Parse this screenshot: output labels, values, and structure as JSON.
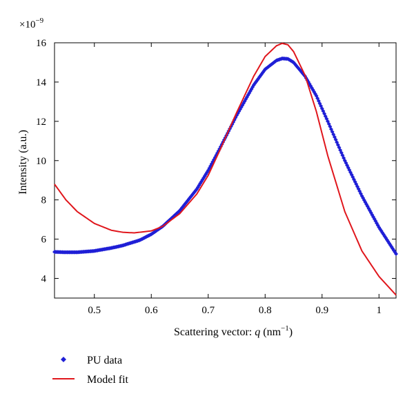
{
  "chart_data": {
    "type": "line",
    "xlabel_prefix": "Scattering vector: ",
    "xlabel_var": "q",
    "xlabel_unit_open": " (nm",
    "xlabel_unit_exp": "−1",
    "xlabel_unit_close": ")",
    "ylabel": "Intensity (a.u.)",
    "y_multiplier_base": "×10",
    "y_multiplier_exp": "−9",
    "xlim": [
      0.43,
      1.03
    ],
    "ylim": [
      3.0,
      16.0
    ],
    "xticks": [
      0.5,
      0.6,
      0.7,
      0.8,
      0.9,
      1
    ],
    "yticks": [
      4,
      6,
      8,
      10,
      12,
      14,
      16
    ],
    "legend_position": "bottom-left",
    "series": [
      {
        "name": "PU data",
        "style": "markers",
        "color": "#1f1fd6",
        "x": [
          0.43,
          0.45,
          0.47,
          0.5,
          0.53,
          0.55,
          0.58,
          0.6,
          0.62,
          0.65,
          0.68,
          0.7,
          0.72,
          0.75,
          0.78,
          0.8,
          0.82,
          0.83,
          0.84,
          0.85,
          0.87,
          0.89,
          0.91,
          0.94,
          0.97,
          1.0,
          1.03
        ],
        "y": [
          5.35,
          5.33,
          5.33,
          5.4,
          5.55,
          5.68,
          5.95,
          6.25,
          6.65,
          7.45,
          8.55,
          9.5,
          10.6,
          12.3,
          13.85,
          14.65,
          15.1,
          15.2,
          15.18,
          15.0,
          14.3,
          13.3,
          12.0,
          10.0,
          8.2,
          6.6,
          5.25
        ]
      },
      {
        "name": "Model fit",
        "style": "line",
        "color": "#e0161c",
        "x": [
          0.43,
          0.45,
          0.47,
          0.5,
          0.53,
          0.55,
          0.57,
          0.6,
          0.62,
          0.65,
          0.68,
          0.7,
          0.72,
          0.75,
          0.78,
          0.8,
          0.82,
          0.83,
          0.84,
          0.85,
          0.87,
          0.89,
          0.91,
          0.94,
          0.97,
          1.0,
          1.03
        ],
        "y": [
          8.8,
          8.0,
          7.4,
          6.8,
          6.45,
          6.35,
          6.32,
          6.42,
          6.65,
          7.3,
          8.3,
          9.25,
          10.5,
          12.45,
          14.3,
          15.3,
          15.85,
          15.97,
          15.9,
          15.55,
          14.35,
          12.5,
          10.25,
          7.4,
          5.4,
          4.1,
          3.15
        ]
      }
    ]
  }
}
